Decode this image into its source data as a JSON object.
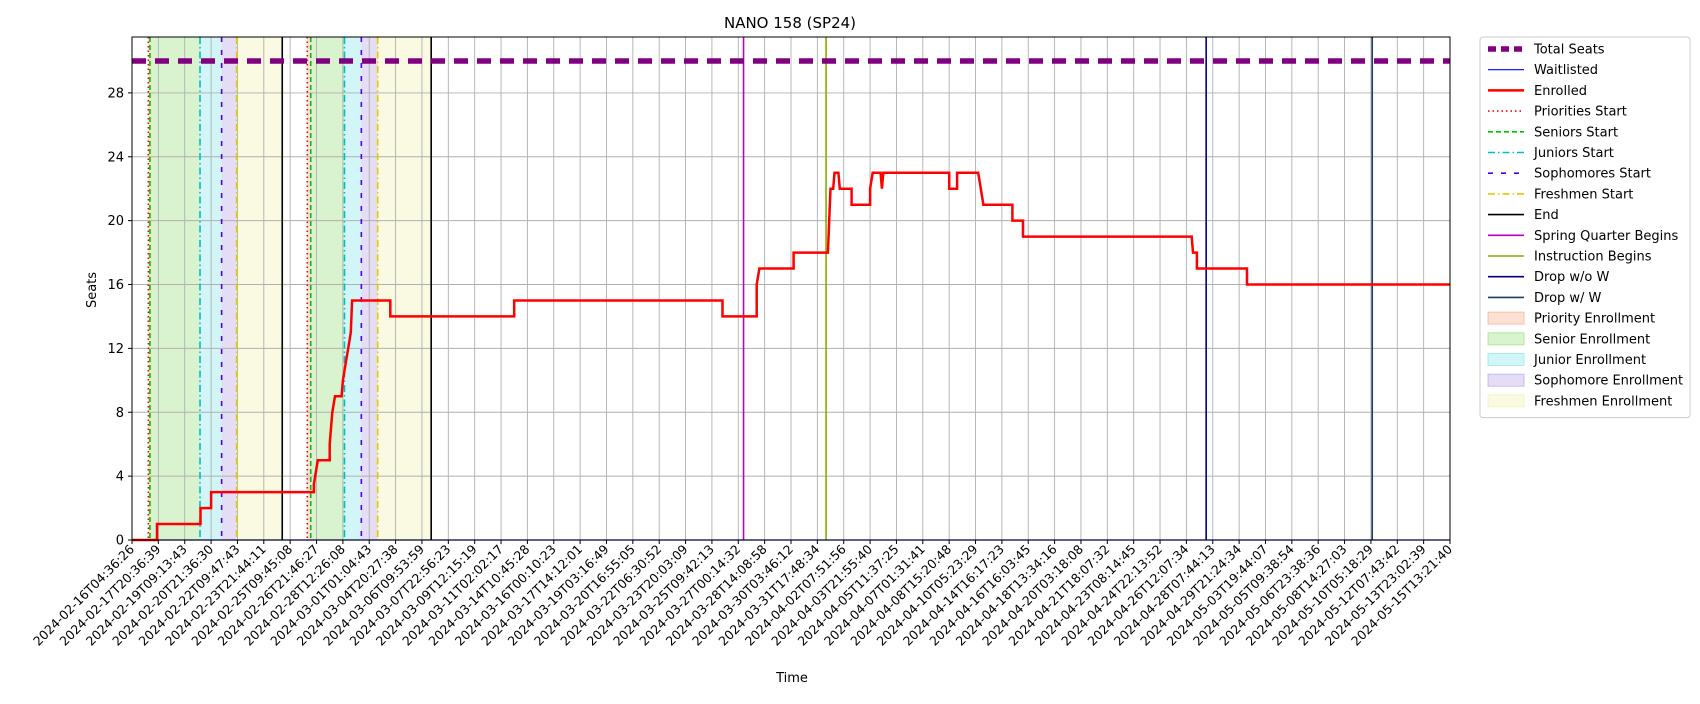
{
  "chart_data": {
    "type": "line",
    "title": "NANO 158 (SP24)",
    "xlabel": "Time",
    "ylabel": "Seats",
    "ylim": [
      0,
      31.5
    ],
    "yticks": [
      0,
      4,
      8,
      12,
      16,
      20,
      24,
      28
    ],
    "grid": true,
    "legend_position": "outside-right",
    "x_tick_labels": [
      "2024-02-16T04:36:26",
      "2024-02-17T20:36:39",
      "2024-02-19T09:13:43",
      "2024-02-20T21:36:30",
      "2024-02-22T09:47:43",
      "2024-02-23T21:44:11",
      "2024-02-25T09:45:08",
      "2024-02-26T21:46:27",
      "2024-02-28T12:26:08",
      "2024-03-01T01:04:43",
      "2024-03-04T20:27:38",
      "2024-03-06T09:53:59",
      "2024-03-07T22:56:23",
      "2024-03-09T12:15:19",
      "2024-03-11T02:02:17",
      "2024-03-14T10:45:28",
      "2024-03-16T00:10:23",
      "2024-03-17T14:12:01",
      "2024-03-19T03:16:49",
      "2024-03-20T16:55:05",
      "2024-03-22T06:30:52",
      "2024-03-23T20:03:09",
      "2024-03-25T09:42:13",
      "2024-03-27T00:14:32",
      "2024-03-28T14:08:58",
      "2024-03-30T03:46:12",
      "2024-03-31T17:48:34",
      "2024-04-02T07:51:56",
      "2024-04-03T21:55:40",
      "2024-04-05T11:37:25",
      "2024-04-07T01:31:41",
      "2024-04-08T15:20:48",
      "2024-04-10T05:23:29",
      "2024-04-14T16:17:23",
      "2024-04-16T16:03:45",
      "2024-04-18T13:34:16",
      "2024-04-20T03:18:08",
      "2024-04-21T18:07:32",
      "2024-04-23T08:14:45",
      "2024-04-24T22:13:52",
      "2024-04-26T12:07:34",
      "2024-04-28T07:44:13",
      "2024-04-29T21:24:34",
      "2024-05-03T19:44:07",
      "2024-05-05T09:38:54",
      "2024-05-06T23:38:36",
      "2024-05-08T14:27:03",
      "2024-05-10T05:18:29",
      "2024-05-12T07:43:42",
      "2024-05-13T23:02:39",
      "2024-05-15T13:21:40"
    ],
    "x_index_range": [
      0,
      50
    ],
    "series": [
      {
        "name": "Total Seats",
        "color": "#800080",
        "style": "dashed-thick",
        "points": [
          [
            0,
            30
          ],
          [
            50,
            30
          ]
        ]
      },
      {
        "name": "Waitlisted",
        "color": "#0000ff",
        "style": "solid-thin",
        "points": [
          [
            0,
            0
          ],
          [
            50,
            0
          ]
        ]
      },
      {
        "name": "Enrolled",
        "color": "#ff0000",
        "style": "solid-thick",
        "points": [
          [
            0,
            0
          ],
          [
            0.95,
            0
          ],
          [
            0.95,
            1
          ],
          [
            2.6,
            1
          ],
          [
            2.6,
            2
          ],
          [
            3,
            2
          ],
          [
            3,
            3
          ],
          [
            6.9,
            3
          ],
          [
            6.9,
            3.5
          ],
          [
            6.95,
            4
          ],
          [
            7.05,
            5
          ],
          [
            7.5,
            5
          ],
          [
            7.5,
            6
          ],
          [
            7.6,
            8
          ],
          [
            7.7,
            9
          ],
          [
            7.95,
            9
          ],
          [
            8,
            10
          ],
          [
            8.1,
            11
          ],
          [
            8.2,
            12
          ],
          [
            8.3,
            13
          ],
          [
            8.35,
            15
          ],
          [
            9.8,
            15
          ],
          [
            9.8,
            14
          ],
          [
            14.5,
            14
          ],
          [
            14.5,
            15
          ],
          [
            22.4,
            15
          ],
          [
            22.4,
            14
          ],
          [
            23.7,
            14
          ],
          [
            23.7,
            16
          ],
          [
            23.8,
            17
          ],
          [
            25.1,
            17
          ],
          [
            25.1,
            18
          ],
          [
            26.4,
            18
          ],
          [
            26.5,
            22
          ],
          [
            26.6,
            22
          ],
          [
            26.65,
            23
          ],
          [
            26.8,
            23
          ],
          [
            26.85,
            22
          ],
          [
            27.3,
            22
          ],
          [
            27.3,
            21
          ],
          [
            28,
            21
          ],
          [
            28,
            22
          ],
          [
            28.1,
            23
          ],
          [
            28.4,
            23
          ],
          [
            28.45,
            22
          ],
          [
            28.5,
            23
          ],
          [
            31,
            23
          ],
          [
            31,
            22
          ],
          [
            31.3,
            22
          ],
          [
            31.3,
            23
          ],
          [
            32.1,
            23
          ],
          [
            32.2,
            22
          ],
          [
            32.3,
            21
          ],
          [
            33.4,
            21
          ],
          [
            33.4,
            20
          ],
          [
            33.8,
            20
          ],
          [
            33.8,
            19
          ],
          [
            40.2,
            19
          ],
          [
            40.25,
            18
          ],
          [
            40.4,
            18
          ],
          [
            40.4,
            17
          ],
          [
            42.3,
            17
          ],
          [
            42.3,
            16
          ],
          [
            50,
            16
          ]
        ]
      }
    ],
    "event_lines": [
      {
        "name": "Priorities Start",
        "color": "#ff0000",
        "style": "dotted",
        "x": [
          0.62,
          6.65
        ]
      },
      {
        "name": "Seniors Start",
        "color": "#00c000",
        "style": "dashed",
        "x": [
          0.68,
          6.78
        ]
      },
      {
        "name": "Juniors Start",
        "color": "#00bfbf",
        "style": "dashdot",
        "x": [
          2.58,
          8.06
        ]
      },
      {
        "name": "Sophomores Start",
        "color": "#5500dd",
        "style": "loosedash",
        "x": [
          3.4,
          8.7
        ]
      },
      {
        "name": "Freshmen Start",
        "color": "#e6c800",
        "style": "dashdot",
        "x": [
          3.97,
          9.32
        ]
      },
      {
        "name": "End",
        "color": "#000000",
        "style": "solid",
        "x": [
          5.7,
          11.35
        ]
      },
      {
        "name": "Spring Quarter Begins",
        "color": "#c000c0",
        "style": "solid",
        "x": [
          23.2
        ]
      },
      {
        "name": "Instruction Begins",
        "color": "#88aa00",
        "style": "solid",
        "x": [
          26.33
        ]
      },
      {
        "name": "Drop w/o W",
        "color": "#00007a",
        "style": "solid",
        "x": [
          40.75
        ]
      },
      {
        "name": "Drop w/ W",
        "color": "#1f3d5f",
        "style": "solid",
        "x": [
          47.05
        ]
      }
    ],
    "periods": [
      {
        "name": "Priority Enrollment",
        "color": "#f4a582",
        "ranges": [
          [
            0.62,
            0.68
          ],
          [
            6.65,
            6.78
          ]
        ]
      },
      {
        "name": "Senior Enrollment",
        "color": "#8fdc72",
        "ranges": [
          [
            0.68,
            2.58
          ],
          [
            6.78,
            8.06
          ]
        ]
      },
      {
        "name": "Junior Enrollment",
        "color": "#7fe3ea",
        "ranges": [
          [
            2.58,
            3.4
          ],
          [
            8.06,
            8.7
          ]
        ]
      },
      {
        "name": "Sophomore Enrollment",
        "color": "#b59ae6",
        "ranges": [
          [
            3.4,
            3.97
          ],
          [
            8.7,
            9.32
          ]
        ]
      },
      {
        "name": "Freshmen Enrollment",
        "color": "#eef0a8",
        "ranges": [
          [
            3.97,
            5.7
          ],
          [
            9.32,
            11.35
          ]
        ]
      }
    ],
    "legend": [
      {
        "label": "Total Seats",
        "kind": "line",
        "color": "#800080",
        "style": "dashed-thick"
      },
      {
        "label": "Waitlisted",
        "kind": "line",
        "color": "#0000ff",
        "style": "solid-thin"
      },
      {
        "label": "Enrolled",
        "kind": "line",
        "color": "#ff0000",
        "style": "solid-thick"
      },
      {
        "label": "Priorities Start",
        "kind": "line",
        "color": "#ff0000",
        "style": "dotted"
      },
      {
        "label": "Seniors Start",
        "kind": "line",
        "color": "#00c000",
        "style": "dashed"
      },
      {
        "label": "Juniors Start",
        "kind": "line",
        "color": "#00bfbf",
        "style": "dashdot"
      },
      {
        "label": "Sophomores Start",
        "kind": "line",
        "color": "#5500dd",
        "style": "loosedash"
      },
      {
        "label": "Freshmen Start",
        "kind": "line",
        "color": "#e6c800",
        "style": "dashdot"
      },
      {
        "label": "End",
        "kind": "line",
        "color": "#000000",
        "style": "solid"
      },
      {
        "label": "Spring Quarter Begins",
        "kind": "line",
        "color": "#c000c0",
        "style": "solid"
      },
      {
        "label": "Instruction Begins",
        "kind": "line",
        "color": "#88aa00",
        "style": "solid"
      },
      {
        "label": "Drop w/o W",
        "kind": "line",
        "color": "#00007a",
        "style": "solid"
      },
      {
        "label": "Drop w/ W",
        "kind": "line",
        "color": "#1f3d5f",
        "style": "solid"
      },
      {
        "label": "Priority Enrollment",
        "kind": "patch",
        "color": "#f4a582"
      },
      {
        "label": "Senior Enrollment",
        "kind": "patch",
        "color": "#8fdc72"
      },
      {
        "label": "Junior Enrollment",
        "kind": "patch",
        "color": "#7fe3ea"
      },
      {
        "label": "Sophomore Enrollment",
        "kind": "patch",
        "color": "#b59ae6"
      },
      {
        "label": "Freshmen Enrollment",
        "kind": "patch",
        "color": "#eef0a8"
      }
    ]
  }
}
